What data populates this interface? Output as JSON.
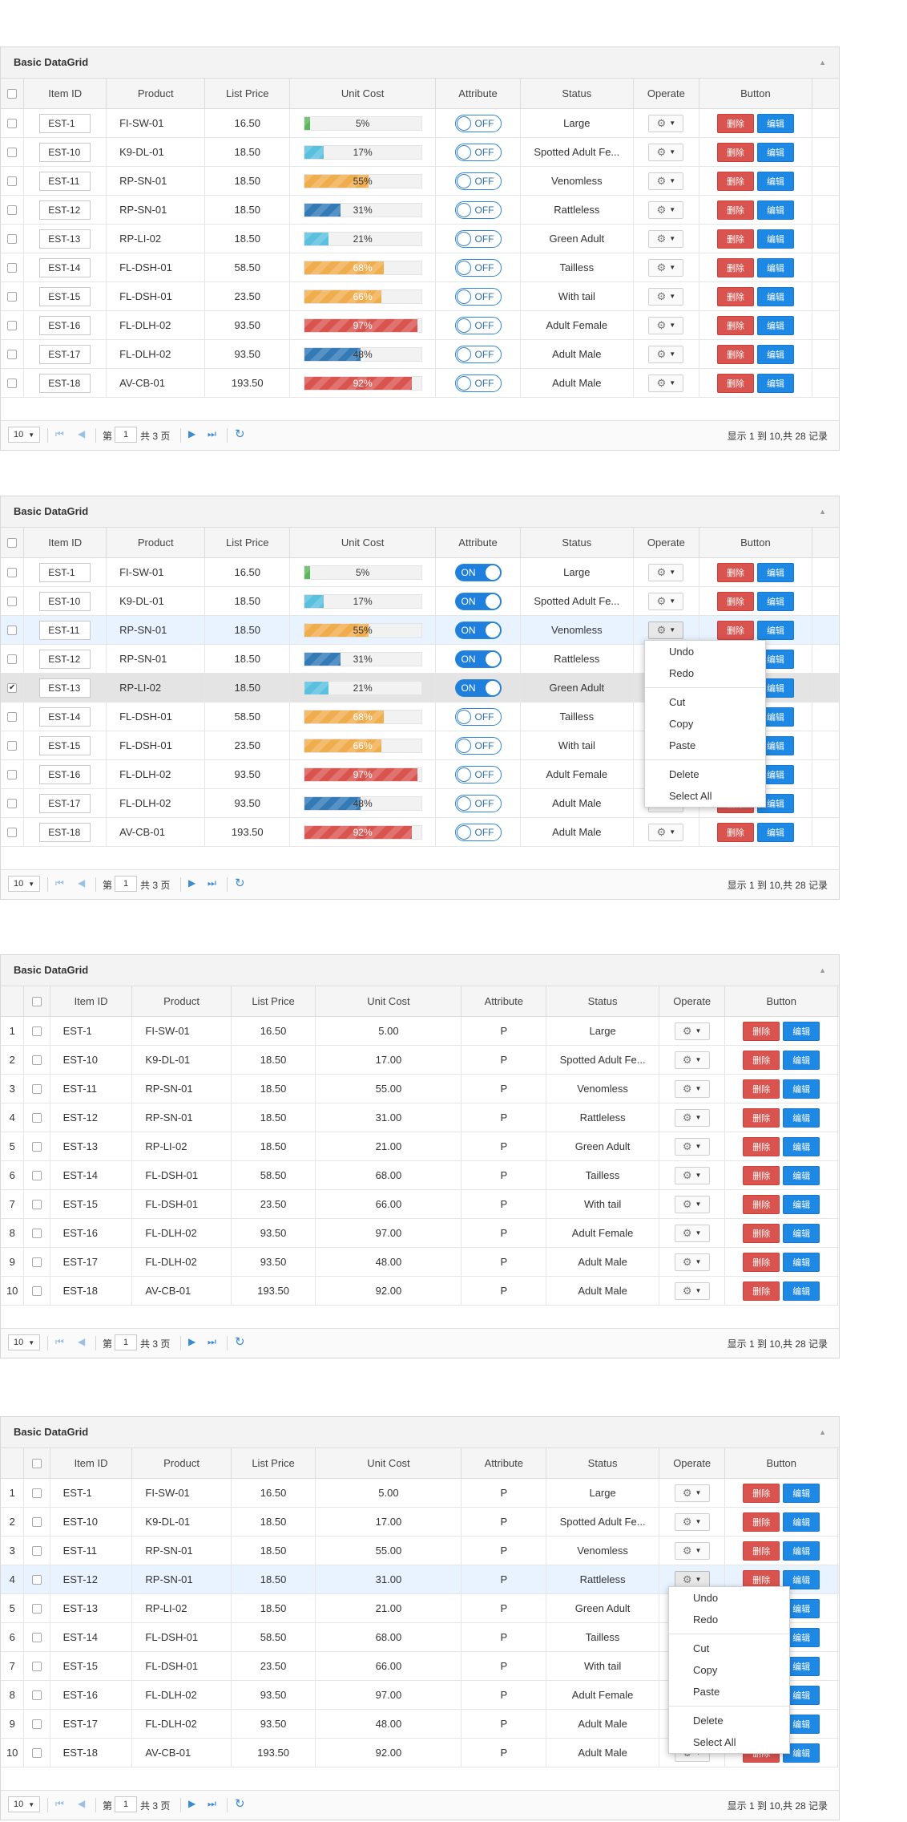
{
  "panels": [
    {
      "title": "Basic DataGrid"
    },
    {
      "title": "Basic DataGrid"
    },
    {
      "title": "Basic DataGrid"
    },
    {
      "title": "Basic DataGrid"
    }
  ],
  "columns": {
    "item_id": "Item ID",
    "product": "Product",
    "list_price": "List Price",
    "unit_cost": "Unit Cost",
    "attribute": "Attribute",
    "status": "Status",
    "operate": "Operate",
    "button": "Button"
  },
  "rows": [
    {
      "num": "1",
      "id": "EST-1",
      "product": "FI-SW-01",
      "price": "16.50",
      "cost": "5.00",
      "pct": 5,
      "pct_label": "5%",
      "bar_color": "#5cb85c",
      "status": "Large",
      "attr": "P"
    },
    {
      "num": "2",
      "id": "EST-10",
      "product": "K9-DL-01",
      "price": "18.50",
      "cost": "17.00",
      "pct": 17,
      "pct_label": "17%",
      "bar_color": "#5bc0de",
      "status": "Spotted Adult Fe...",
      "attr": "P"
    },
    {
      "num": "3",
      "id": "EST-11",
      "product": "RP-SN-01",
      "price": "18.50",
      "cost": "55.00",
      "pct": 55,
      "pct_label": "55%",
      "bar_color": "#f0ad4e",
      "status": "Venomless",
      "attr": "P"
    },
    {
      "num": "4",
      "id": "EST-12",
      "product": "RP-SN-01",
      "price": "18.50",
      "cost": "31.00",
      "pct": 31,
      "pct_label": "31%",
      "bar_color": "#337ab7",
      "status": "Rattleless",
      "attr": "P"
    },
    {
      "num": "5",
      "id": "EST-13",
      "product": "RP-LI-02",
      "price": "18.50",
      "cost": "21.00",
      "pct": 21,
      "pct_label": "21%",
      "bar_color": "#5bc0de",
      "status": "Green Adult",
      "attr": "P"
    },
    {
      "num": "6",
      "id": "EST-14",
      "product": "FL-DSH-01",
      "price": "58.50",
      "cost": "68.00",
      "pct": 68,
      "pct_label": "68%",
      "bar_color": "#f0ad4e",
      "status": "Tailless",
      "attr": "P"
    },
    {
      "num": "7",
      "id": "EST-15",
      "product": "FL-DSH-01",
      "price": "23.50",
      "cost": "66.00",
      "pct": 66,
      "pct_label": "66%",
      "bar_color": "#f0ad4e",
      "status": "With tail",
      "attr": "P"
    },
    {
      "num": "8",
      "id": "EST-16",
      "product": "FL-DLH-02",
      "price": "93.50",
      "cost": "97.00",
      "pct": 97,
      "pct_label": "97%",
      "bar_color": "#d9534f",
      "status": "Adult Female",
      "attr": "P"
    },
    {
      "num": "9",
      "id": "EST-17",
      "product": "FL-DLH-02",
      "price": "93.50",
      "cost": "48.00",
      "pct": 48,
      "pct_label": "48%",
      "bar_color": "#337ab7",
      "status": "Adult Male",
      "attr": "P"
    },
    {
      "num": "10",
      "id": "EST-18",
      "product": "AV-CB-01",
      "price": "193.50",
      "cost": "92.00",
      "pct": 92,
      "pct_label": "92%",
      "bar_color": "#d9534f",
      "status": "Adult Male",
      "attr": "P"
    }
  ],
  "switch": {
    "on": "ON",
    "off": "OFF"
  },
  "buttons": {
    "delete": "删除",
    "edit": "编辑"
  },
  "pager": {
    "page_size": "10",
    "page_prefix": "第",
    "page_value": "1",
    "page_total": "共 3 页",
    "info": "显示 1 到 10,共 28 记录"
  },
  "context_menu": {
    "undo": "Undo",
    "redo": "Redo",
    "cut": "Cut",
    "copy": "Copy",
    "paste": "Paste",
    "delete": "Delete",
    "select_all": "Select All"
  },
  "states": {
    "grid2_switch_on_rows": [
      0,
      1,
      2,
      3,
      4
    ],
    "grid2_highlight_row": 2,
    "grid2_checked_row": 4,
    "grid4_highlight_row": 3
  },
  "icons": [
    "collapse-icon",
    "gear-icon",
    "first-page-icon",
    "prev-page-icon",
    "next-page-icon",
    "last-page-icon",
    "refresh-icon"
  ]
}
